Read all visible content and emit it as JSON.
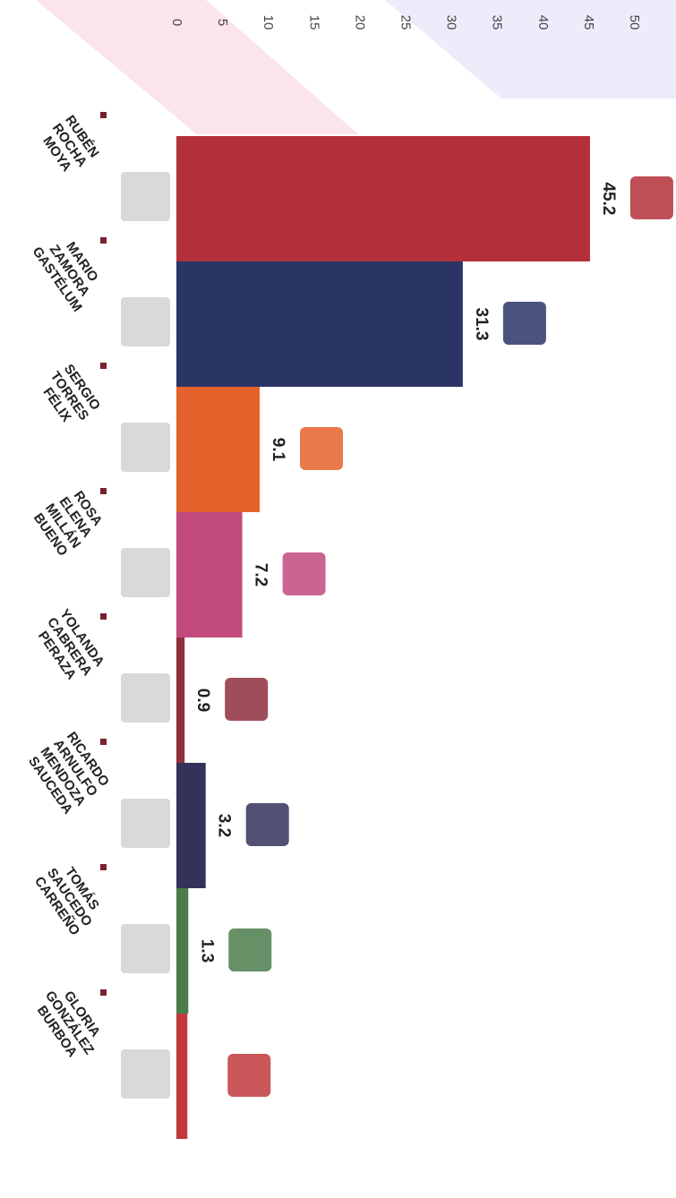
{
  "chart_data": {
    "type": "bar",
    "categories": [
      "RUBÉN ROCHA MOYA",
      "MARIO ZAMORA GASTÉLUM",
      "SERGIO TORRES FÉLIX",
      "ROSA ELENA MILLÁN BUENO",
      "YOLANDA CABRERA PERAZA",
      "RICARDO ARNULFO MENDOZA SAUCEDA",
      "TOMÁS SAUCEDO CARREÑO",
      "GLORIA GONZÁLEZ BURBOA"
    ],
    "values": [
      45.2,
      31.3,
      9.1,
      7.2,
      0.9,
      3.2,
      1.3,
      1.2
    ],
    "value_labels": [
      "45.2",
      "31.3",
      "9.1",
      "7.2",
      "0.9",
      "3.2",
      "1.3",
      null
    ],
    "colors": [
      "#b3303a",
      "#2a3566",
      "#e5622c",
      "#c24a7c",
      "#8e2f3c",
      "#33335a",
      "#4b7c4b",
      "#c0393c"
    ],
    "ylim": [
      0,
      50
    ],
    "yticks": [
      0,
      5,
      10,
      15,
      20,
      25,
      30,
      35,
      40,
      45,
      50
    ]
  }
}
